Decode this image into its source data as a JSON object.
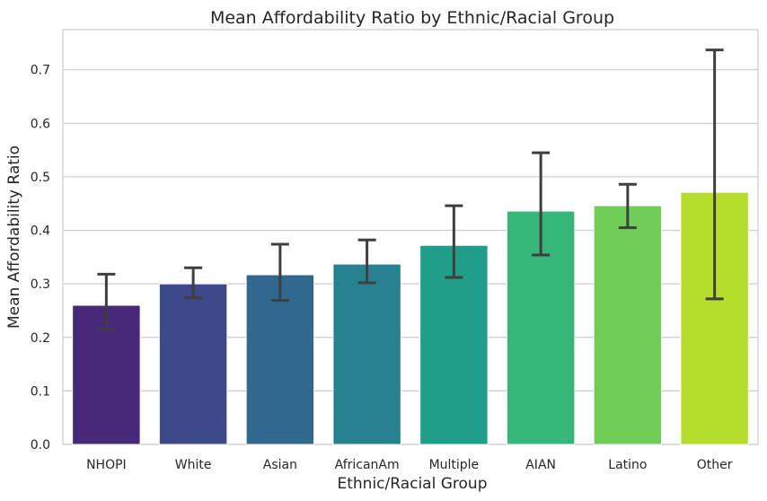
{
  "chart_data": {
    "type": "bar",
    "title": "Mean Affordability Ratio by Ethnic/Racial Group",
    "xlabel": "Ethnic/Racial Group",
    "ylabel": "Mean Affordability Ratio",
    "ylim": [
      0,
      0.775
    ],
    "yticks": [
      "0.0",
      "0.1",
      "0.2",
      "0.3",
      "0.4",
      "0.5",
      "0.6",
      "0.7"
    ],
    "grid": true,
    "categories": [
      "NHOPI",
      "White",
      "Asian",
      "AfricanAm",
      "Multiple",
      "AIAN",
      "Latino",
      "Other"
    ],
    "values": [
      0.26,
      0.3,
      0.317,
      0.337,
      0.372,
      0.436,
      0.446,
      0.471
    ],
    "error_low": [
      0.215,
      0.274,
      0.269,
      0.302,
      0.312,
      0.354,
      0.405,
      0.272
    ],
    "error_high": [
      0.318,
      0.33,
      0.374,
      0.382,
      0.446,
      0.545,
      0.486,
      0.737
    ],
    "colors": [
      "#482878",
      "#3e4989",
      "#31688e",
      "#26828e",
      "#1f9e89",
      "#35b779",
      "#6ece58",
      "#b5de2b"
    ]
  }
}
